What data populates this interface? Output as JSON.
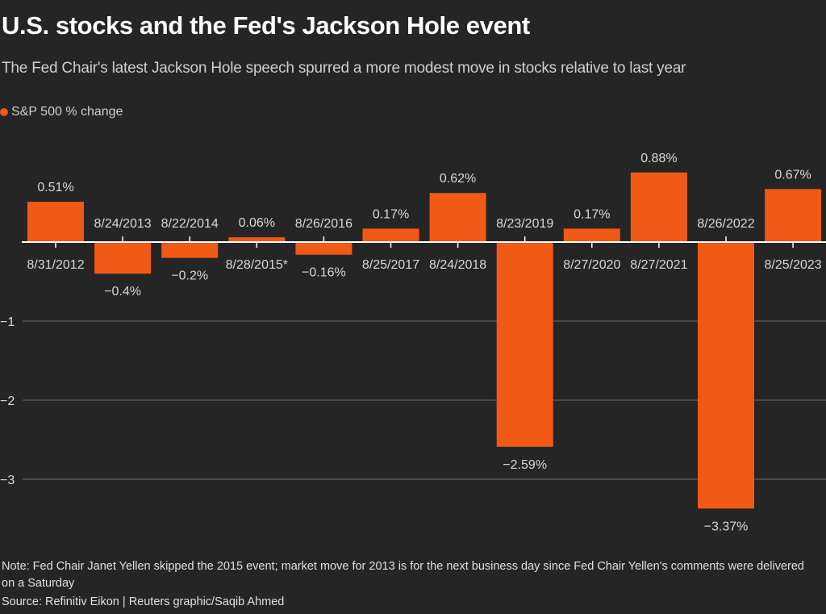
{
  "title": "U.S. stocks and the Fed's Jackson Hole event",
  "subtitle": "The Fed Chair's latest Jackson Hole speech spurred a more modest move in stocks relative to last year",
  "legend": {
    "label": "S&P 500 % change",
    "color": "#f05a14"
  },
  "footer": {
    "note": "Note: Fed Chair Janet Yellen skipped the 2015 event; market move for 2013 is for the next business day since Fed Chair Yellen's comments were delivered on a Saturday",
    "source": "Source: Refinitiv Eikon | Reuters graphic/Saqib Ahmed"
  },
  "colors": {
    "bar": "#f05a14",
    "background": "#252525",
    "gridline": "#555555",
    "axis": "#ffffff",
    "text": "#d8d8d8"
  },
  "chart_data": {
    "type": "bar",
    "title": "U.S. stocks and the Fed's Jackson Hole event",
    "xlabel": "",
    "ylabel": "S&P 500 % change",
    "ylim": [
      -3.5,
      1.0
    ],
    "yticks": [
      -1,
      -2,
      -3
    ],
    "ytick_labels": [
      "−1",
      "−2",
      "−3"
    ],
    "grid": true,
    "legend_position": "top-left",
    "categories": [
      "8/31/2012",
      "8/24/2013",
      "8/22/2014",
      "8/28/2015*",
      "8/26/2016",
      "8/25/2017",
      "8/24/2018",
      "8/23/2019",
      "8/27/2020",
      "8/27/2021",
      "8/26/2022",
      "8/25/2023"
    ],
    "series": [
      {
        "name": "S&P 500 % change",
        "values": [
          0.51,
          -0.4,
          -0.2,
          0.06,
          -0.16,
          0.17,
          0.62,
          -2.59,
          0.17,
          0.88,
          -3.37,
          0.67
        ],
        "labels": [
          "0.51%",
          "−0.4%",
          "−0.2%",
          "0.06%",
          "−0.16%",
          "0.17%",
          "0.62%",
          "−2.59%",
          "0.17%",
          "0.88%",
          "−3.37%",
          "0.67%"
        ]
      }
    ]
  }
}
